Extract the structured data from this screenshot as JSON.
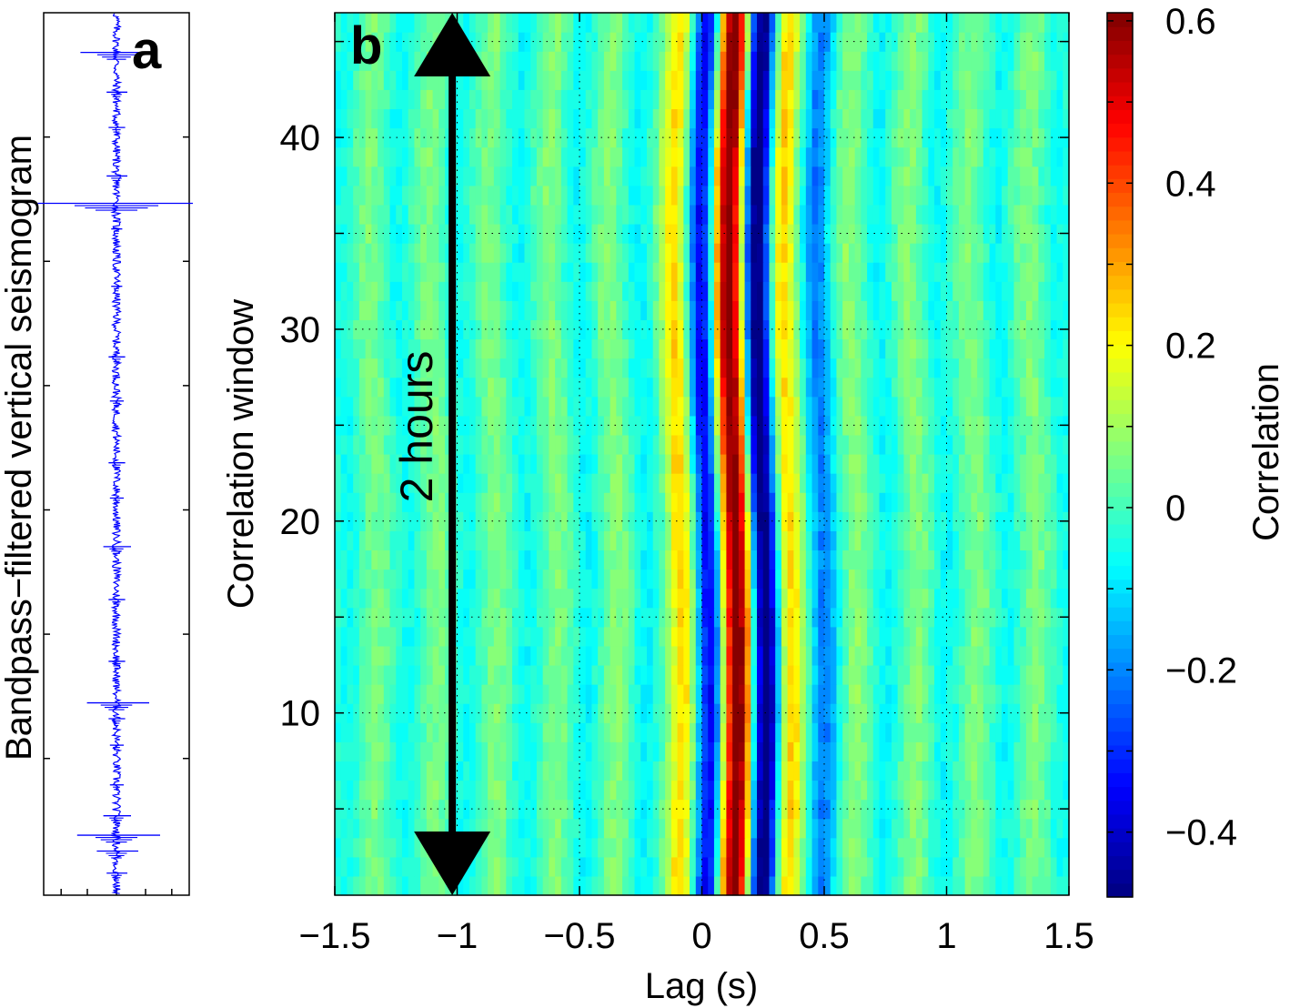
{
  "chart_data": [
    {
      "panel": "a",
      "type": "line",
      "panel_label": "a",
      "ylabel": "Bandpass−filtered vertical seismogram",
      "series_color": "#0000ff",
      "trace_center": 0,
      "trace_range": [
        -1,
        1
      ],
      "time_range": [
        0,
        1
      ],
      "bursts": [
        {
          "t": 0.045,
          "amp": 0.55
        },
        {
          "t": 0.09,
          "amp": 0.15
        },
        {
          "t": 0.13,
          "amp": 0.12
        },
        {
          "t": 0.185,
          "amp": 0.15
        },
        {
          "t": 0.216,
          "amp": 1.2
        },
        {
          "t": 0.245,
          "amp": 0.08
        },
        {
          "t": 0.31,
          "amp": 0.08
        },
        {
          "t": 0.39,
          "amp": 0.12
        },
        {
          "t": 0.44,
          "amp": 0.1
        },
        {
          "t": 0.51,
          "amp": 0.12
        },
        {
          "t": 0.55,
          "amp": 0.1
        },
        {
          "t": 0.605,
          "amp": 0.2
        },
        {
          "t": 0.665,
          "amp": 0.12
        },
        {
          "t": 0.735,
          "amp": 0.12
        },
        {
          "t": 0.782,
          "amp": 0.45
        },
        {
          "t": 0.8,
          "amp": 0.12
        },
        {
          "t": 0.83,
          "amp": 0.1
        },
        {
          "t": 0.875,
          "amp": 0.1
        },
        {
          "t": 0.91,
          "amp": 0.2
        },
        {
          "t": 0.932,
          "amp": 0.6
        },
        {
          "t": 0.95,
          "amp": 0.3
        },
        {
          "t": 0.975,
          "amp": 0.15
        }
      ]
    },
    {
      "panel": "b",
      "type": "heatmap",
      "panel_label": "b",
      "xlabel": "Lag (s)",
      "ylabel": "Correlation window",
      "xlim": [
        -1.5,
        1.5
      ],
      "ylim": [
        0.5,
        46.5
      ],
      "xticks": [
        -1.5,
        -1,
        -0.5,
        0,
        0.5,
        1,
        1.5
      ],
      "xtick_labels": [
        "−1.5",
        "−1",
        "−0.5",
        "0",
        "0.5",
        "1",
        "1.5"
      ],
      "yticks": [
        10,
        20,
        30,
        40
      ],
      "ytick_labels": [
        "10",
        "20",
        "30",
        "40"
      ],
      "grid_x": [
        -1.5,
        -1,
        -0.5,
        0,
        0.5,
        1,
        1.5
      ],
      "grid_y": [
        5,
        10,
        15,
        20,
        25,
        30,
        35,
        40,
        45
      ],
      "grid": true,
      "windows": 46,
      "lag_step": 0.025,
      "peak_lag": 0.13,
      "trough_lag": 0.24,
      "peak_value": 0.55,
      "trough_value": -0.45,
      "annotation": {
        "text": "2 hours",
        "arrow_x": -1.02,
        "arrow_from": 0.5,
        "arrow_to": 46.5
      },
      "colorbar": {
        "label": "Correlation",
        "range": [
          -0.48,
          0.61
        ],
        "ticks": [
          -0.4,
          -0.2,
          0,
          0.2,
          0.4,
          0.6
        ],
        "tick_labels": [
          "−0.4",
          "−0.2",
          "0",
          "0.2",
          "0.4",
          "0.6"
        ],
        "minor_step": 0.1,
        "colormap": "jet",
        "levels": 64
      }
    }
  ]
}
